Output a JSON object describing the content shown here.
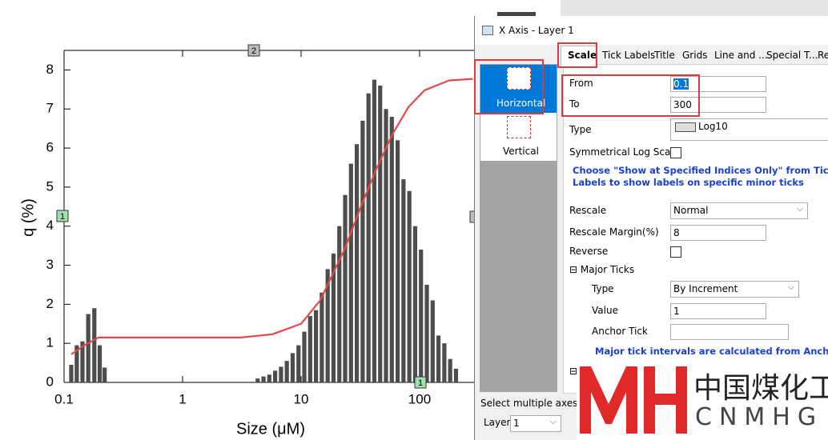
{
  "chart_data": {
    "type": "bar",
    "xlabel": "Size (μM)",
    "ylabel": "q (%)",
    "xscale": "log",
    "xlim": [
      0.1,
      300
    ],
    "xticks": [
      0.1,
      1,
      10,
      100
    ],
    "ylim": [
      0,
      8.5
    ],
    "yticks": [
      0,
      1,
      2,
      3,
      4,
      5,
      6,
      7,
      8
    ],
    "series": [
      {
        "type": "bar",
        "color": "#4d4d4d",
        "x": [
          0.115,
          0.128,
          0.143,
          0.16,
          0.18,
          0.2,
          0.22,
          4.3,
          4.82,
          5.39,
          6.04,
          6.77,
          7.58,
          8.49,
          9.51,
          10.65,
          11.93,
          13.36,
          14.96,
          16.76,
          18.77,
          21.02,
          23.54,
          26.37,
          29.53,
          33.08,
          37.05,
          41.49,
          46.47,
          52.05,
          58.29,
          65.29,
          73.12,
          81.9,
          91.7,
          102.7,
          115.1,
          128.9,
          144.3,
          161.7,
          181.1,
          202.8
        ],
        "values": [
          0.45,
          0.95,
          1.05,
          1.75,
          1.9,
          0.95,
          0.38,
          0.1,
          0.15,
          0.2,
          0.3,
          0.4,
          0.55,
          0.75,
          0.95,
          1.3,
          1.7,
          1.85,
          2.3,
          2.9,
          3.3,
          4.0,
          4.8,
          5.6,
          6.1,
          6.7,
          7.4,
          7.75,
          7.6,
          7.0,
          6.8,
          6.2,
          5.2,
          4.9,
          4.0,
          3.4,
          2.5,
          2.1,
          1.2,
          1.0,
          0.6,
          0.35
        ]
      },
      {
        "type": "line",
        "color": "#e5484a",
        "x": [
          0.115,
          0.147,
          0.195,
          3.06,
          5.7,
          10,
          14.5,
          23.2,
          31.6,
          43.4,
          58.7,
          80.6,
          110.2,
          176.7,
          281
        ],
        "values": [
          0.72,
          0.94,
          1.15,
          1.15,
          1.23,
          1.5,
          2.1,
          3.4,
          4.46,
          5.48,
          6.34,
          7.05,
          7.48,
          7.73,
          7.77
        ]
      }
    ]
  },
  "plot_tags": [
    "2",
    "1",
    "1"
  ],
  "dialog": {
    "title": "X Axis - Layer 1",
    "tabs": [
      "Scale",
      "Tick Labels",
      "Title",
      "Grids",
      "Line and ...",
      "Special T...",
      "Re"
    ],
    "axes": [
      "Horizontal",
      "Vertical"
    ],
    "form": {
      "from_label": "From",
      "to_label": "To",
      "type_label": "Type",
      "type_value": "Log10",
      "symmetrical_label": "Symmetrical Log Scale",
      "note_1": "Choose \"Show at Specified Indices Only\" from Tick Labels",
      "note_2": "Labels to show labels on specific minor ticks",
      "rescale_label": "Rescale",
      "rescale_value": "Normal",
      "margin_label": "Rescale Margin(%)",
      "margin_value": 8,
      "reverse_label": "Reverse",
      "major_ticks_label": "Major Ticks",
      "major_type_label": "Type",
      "major_type_value": "By Increment",
      "value_label": "Value",
      "value_value": 1,
      "anchor_label": "Anchor Tick",
      "note_3": "Major tick intervals are calculated from Anchor Tick"
    },
    "footer_text": "Select multiple axes to",
    "layer_label": "Layer",
    "layer_value": 1
  },
  "watermark": {
    "chinese": "中国煤化工",
    "latin": "CNMHG"
  }
}
